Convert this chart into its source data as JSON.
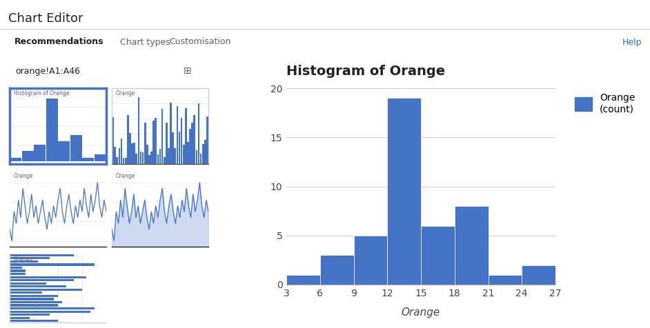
{
  "title": "Histogram of Orange",
  "xlabel": "Orange",
  "bar_color": "#4472C4",
  "bar_edge_color": "#ffffff",
  "bin_left_edges": [
    3,
    6,
    9,
    12,
    15,
    18,
    21,
    24
  ],
  "bin_heights": [
    1,
    3,
    5,
    19,
    6,
    8,
    1,
    2
  ],
  "bin_width": 3,
  "xlim": [
    3,
    27
  ],
  "ylim": [
    0,
    20
  ],
  "yticks": [
    0,
    5,
    10,
    15,
    20
  ],
  "xticks": [
    3,
    6,
    9,
    12,
    15,
    18,
    21,
    24,
    27
  ],
  "legend_label": "Orange\n(count)",
  "grid_color": "#cccccc",
  "title_fontsize": 14,
  "tick_fontsize": 10,
  "legend_fontsize": 10,
  "cell_ref": "orange!A1:A46",
  "tab_active": "Recommendations",
  "tab_inactive_1": "Chart types",
  "tab_inactive_2": "Customisation",
  "help_text": "Help",
  "bg_color": "#ffffff",
  "panel_bg": "#f8f9fa",
  "thumb_selected_color": "#4472C4",
  "thumb_border_color": "#cccccc"
}
